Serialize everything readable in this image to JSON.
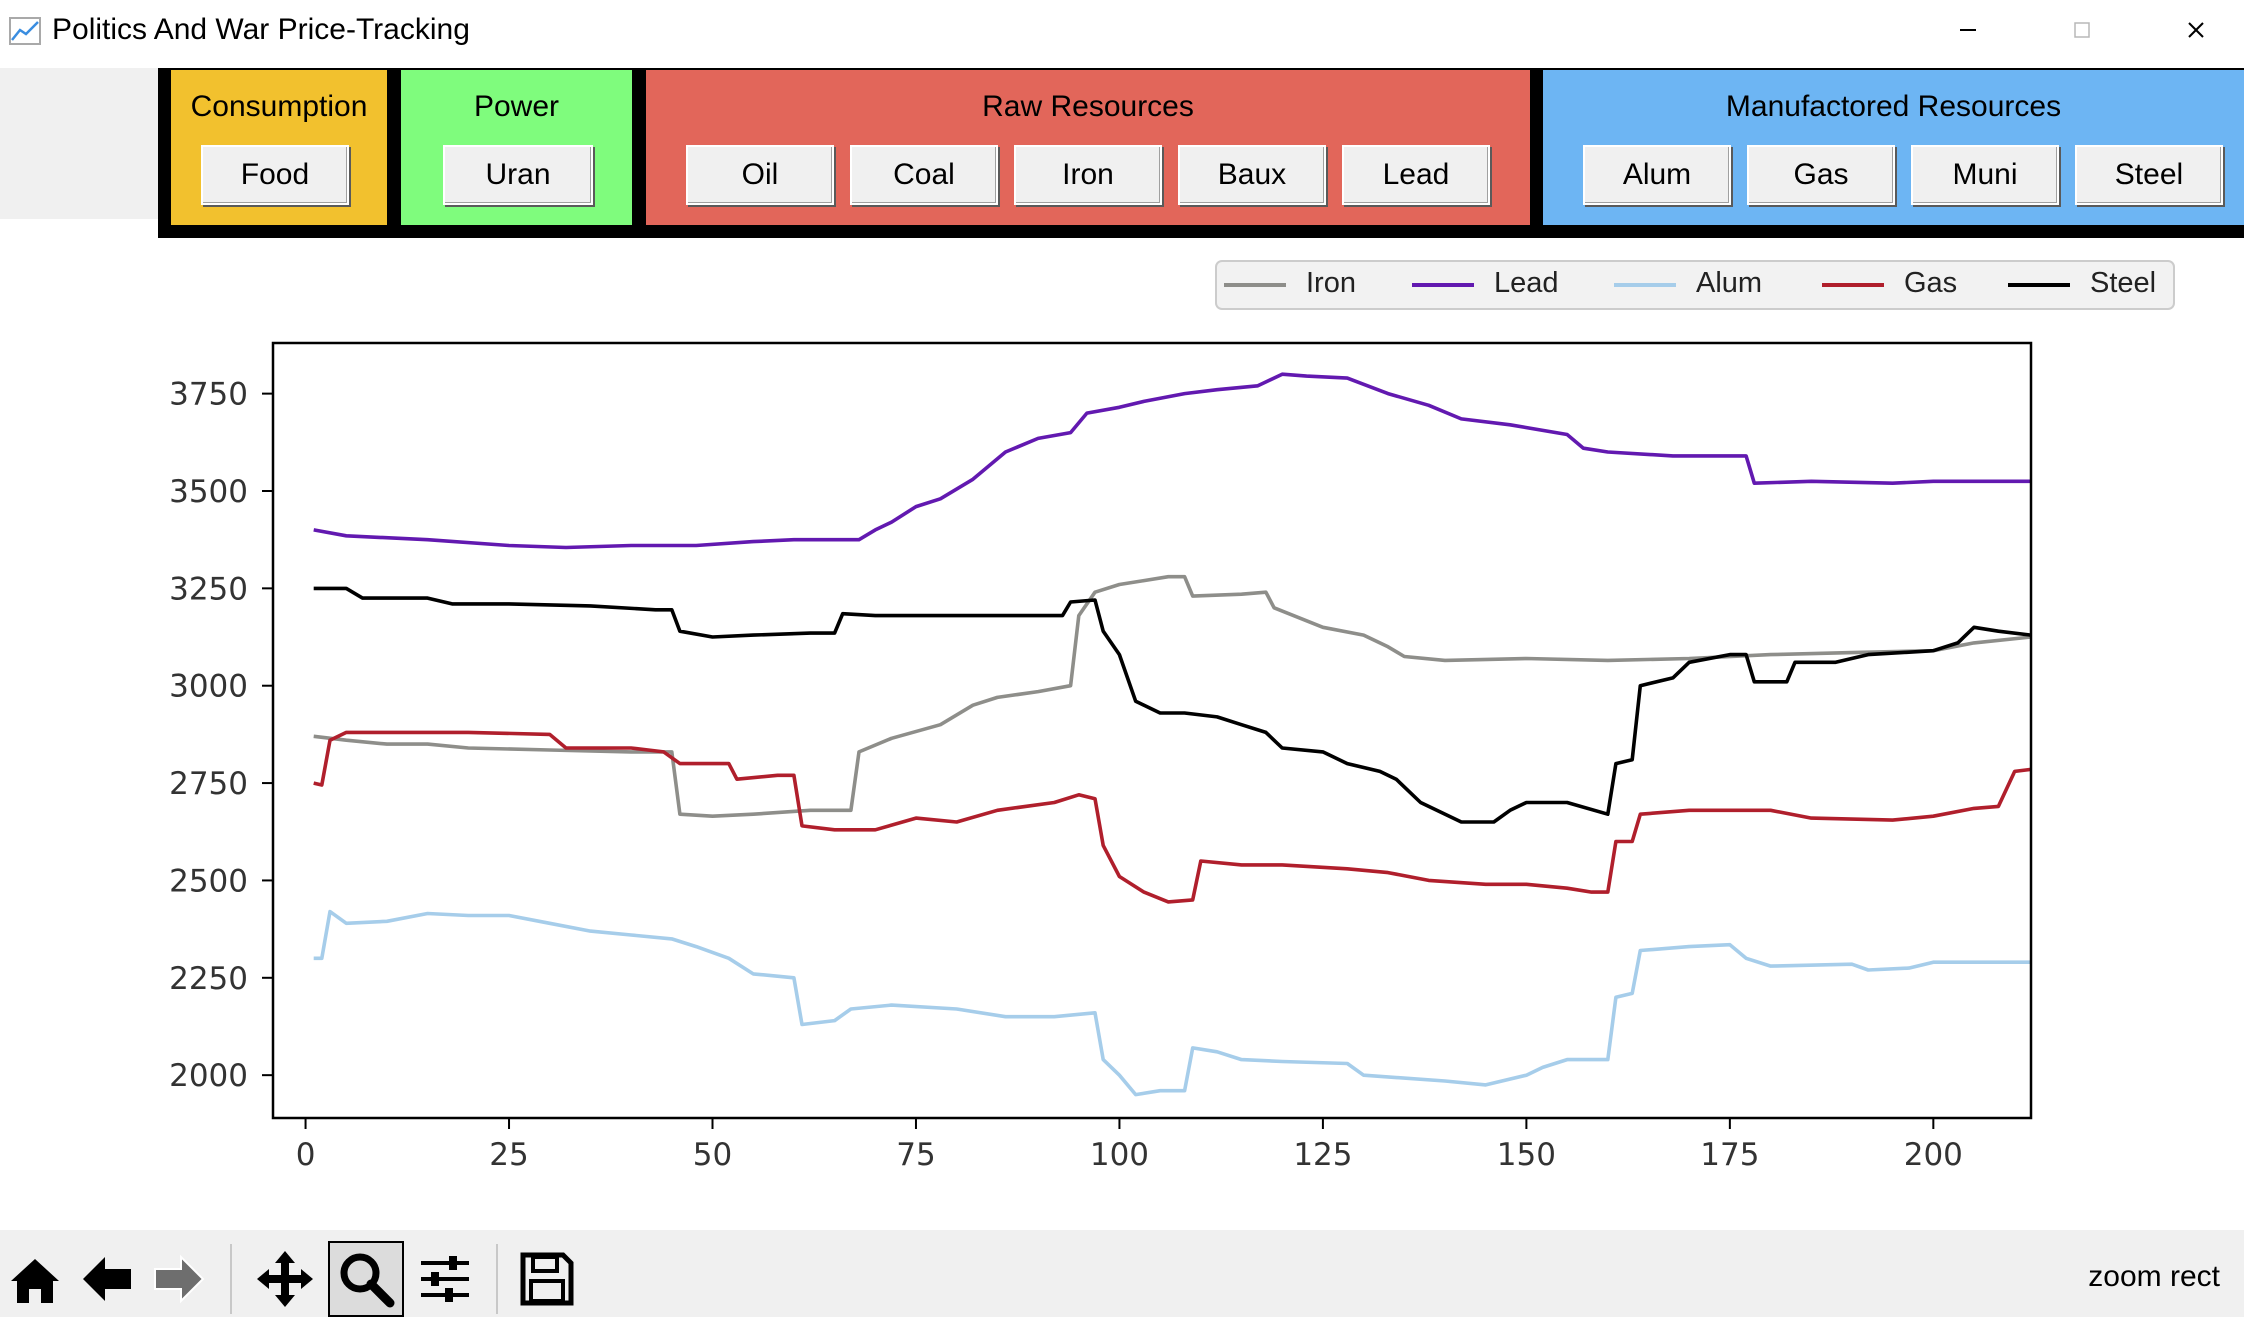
{
  "window": {
    "title": "Politics And War Price-Tracking",
    "controls": [
      "minimize",
      "maximize",
      "close"
    ]
  },
  "categories": [
    {
      "label": "Consumption",
      "color": "#f2c12e",
      "buttons": [
        "Food"
      ]
    },
    {
      "label": "Power",
      "color": "#7ffc7d",
      "buttons": [
        "Uran"
      ]
    },
    {
      "label": "Raw Resources",
      "color": "#e2665a",
      "buttons": [
        "Oil",
        "Coal",
        "Iron",
        "Baux",
        "Lead"
      ]
    },
    {
      "label": "Manufactored Resources",
      "color": "#6db5f3",
      "buttons": [
        "Alum",
        "Gas",
        "Muni",
        "Steel"
      ]
    }
  ],
  "toolbar": {
    "icons": [
      "home-icon",
      "back-arrow-icon",
      "forward-arrow-icon",
      "pan-icon",
      "zoom-icon",
      "configure-subplots-icon",
      "save-icon"
    ],
    "active": "zoom-icon",
    "status": "zoom rect"
  },
  "chart_data": {
    "type": "line",
    "xlim": [
      -4,
      212
    ],
    "ylim": [
      1890,
      3880
    ],
    "xticks": [
      0,
      25,
      50,
      75,
      100,
      125,
      150,
      175,
      200
    ],
    "yticks": [
      2000,
      2250,
      2500,
      2750,
      3000,
      3250,
      3500,
      3750
    ],
    "legend_position": "top-right",
    "grid": false,
    "series": [
      {
        "name": "Iron",
        "color": "#8e8e8a",
        "points": [
          [
            1,
            2870
          ],
          [
            5,
            2860
          ],
          [
            10,
            2850
          ],
          [
            15,
            2850
          ],
          [
            20,
            2840
          ],
          [
            30,
            2835
          ],
          [
            40,
            2830
          ],
          [
            45,
            2830
          ],
          [
            46,
            2670
          ],
          [
            50,
            2665
          ],
          [
            55,
            2670
          ],
          [
            62,
            2680
          ],
          [
            67,
            2680
          ],
          [
            68,
            2830
          ],
          [
            72,
            2865
          ],
          [
            78,
            2900
          ],
          [
            82,
            2950
          ],
          [
            85,
            2970
          ],
          [
            90,
            2985
          ],
          [
            94,
            3000
          ],
          [
            95,
            3180
          ],
          [
            97,
            3240
          ],
          [
            100,
            3260
          ],
          [
            103,
            3270
          ],
          [
            106,
            3280
          ],
          [
            108,
            3280
          ],
          [
            109,
            3230
          ],
          [
            115,
            3235
          ],
          [
            118,
            3240
          ],
          [
            119,
            3200
          ],
          [
            125,
            3150
          ],
          [
            130,
            3130
          ],
          [
            133,
            3100
          ],
          [
            135,
            3075
          ],
          [
            140,
            3065
          ],
          [
            150,
            3070
          ],
          [
            160,
            3065
          ],
          [
            170,
            3070
          ],
          [
            180,
            3080
          ],
          [
            190,
            3085
          ],
          [
            200,
            3090
          ],
          [
            205,
            3110
          ],
          [
            212,
            3125
          ]
        ]
      },
      {
        "name": "Lead",
        "color": "#6219b0",
        "points": [
          [
            1,
            3400
          ],
          [
            5,
            3385
          ],
          [
            15,
            3375
          ],
          [
            25,
            3360
          ],
          [
            32,
            3355
          ],
          [
            40,
            3360
          ],
          [
            48,
            3360
          ],
          [
            55,
            3370
          ],
          [
            60,
            3375
          ],
          [
            68,
            3375
          ],
          [
            70,
            3400
          ],
          [
            72,
            3420
          ],
          [
            75,
            3460
          ],
          [
            78,
            3480
          ],
          [
            82,
            3530
          ],
          [
            86,
            3600
          ],
          [
            90,
            3635
          ],
          [
            94,
            3650
          ],
          [
            96,
            3700
          ],
          [
            100,
            3715
          ],
          [
            103,
            3730
          ],
          [
            108,
            3750
          ],
          [
            112,
            3760
          ],
          [
            117,
            3770
          ],
          [
            120,
            3800
          ],
          [
            123,
            3795
          ],
          [
            128,
            3790
          ],
          [
            133,
            3750
          ],
          [
            138,
            3720
          ],
          [
            142,
            3685
          ],
          [
            148,
            3670
          ],
          [
            155,
            3645
          ],
          [
            157,
            3610
          ],
          [
            160,
            3600
          ],
          [
            168,
            3590
          ],
          [
            177,
            3590
          ],
          [
            178,
            3520
          ],
          [
            185,
            3525
          ],
          [
            195,
            3520
          ],
          [
            200,
            3525
          ],
          [
            212,
            3525
          ]
        ]
      },
      {
        "name": "Alum",
        "color": "#a6cdea",
        "points": [
          [
            1,
            2300
          ],
          [
            2,
            2300
          ],
          [
            3,
            2420
          ],
          [
            5,
            2390
          ],
          [
            10,
            2395
          ],
          [
            15,
            2415
          ],
          [
            20,
            2410
          ],
          [
            25,
            2410
          ],
          [
            30,
            2390
          ],
          [
            35,
            2370
          ],
          [
            40,
            2360
          ],
          [
            45,
            2350
          ],
          [
            48,
            2330
          ],
          [
            52,
            2300
          ],
          [
            55,
            2260
          ],
          [
            60,
            2250
          ],
          [
            61,
            2130
          ],
          [
            65,
            2140
          ],
          [
            67,
            2170
          ],
          [
            72,
            2180
          ],
          [
            80,
            2170
          ],
          [
            86,
            2150
          ],
          [
            92,
            2150
          ],
          [
            97,
            2160
          ],
          [
            98,
            2040
          ],
          [
            100,
            2000
          ],
          [
            102,
            1950
          ],
          [
            105,
            1960
          ],
          [
            108,
            1960
          ],
          [
            109,
            2070
          ],
          [
            112,
            2060
          ],
          [
            115,
            2040
          ],
          [
            120,
            2035
          ],
          [
            128,
            2030
          ],
          [
            130,
            2000
          ],
          [
            140,
            1985
          ],
          [
            145,
            1975
          ],
          [
            150,
            2000
          ],
          [
            152,
            2020
          ],
          [
            155,
            2040
          ],
          [
            160,
            2040
          ],
          [
            161,
            2200
          ],
          [
            163,
            2210
          ],
          [
            164,
            2320
          ],
          [
            170,
            2330
          ],
          [
            175,
            2335
          ],
          [
            177,
            2300
          ],
          [
            180,
            2280
          ],
          [
            190,
            2285
          ],
          [
            192,
            2270
          ],
          [
            197,
            2275
          ],
          [
            200,
            2290
          ],
          [
            212,
            2290
          ]
        ]
      },
      {
        "name": "Gas",
        "color": "#b01f2c",
        "points": [
          [
            1,
            2750
          ],
          [
            2,
            2745
          ],
          [
            3,
            2860
          ],
          [
            5,
            2880
          ],
          [
            10,
            2880
          ],
          [
            20,
            2880
          ],
          [
            30,
            2875
          ],
          [
            32,
            2840
          ],
          [
            40,
            2840
          ],
          [
            44,
            2830
          ],
          [
            46,
            2800
          ],
          [
            52,
            2800
          ],
          [
            53,
            2760
          ],
          [
            58,
            2770
          ],
          [
            60,
            2770
          ],
          [
            61,
            2640
          ],
          [
            65,
            2630
          ],
          [
            70,
            2630
          ],
          [
            75,
            2660
          ],
          [
            80,
            2650
          ],
          [
            85,
            2680
          ],
          [
            92,
            2700
          ],
          [
            95,
            2720
          ],
          [
            97,
            2710
          ],
          [
            98,
            2590
          ],
          [
            100,
            2510
          ],
          [
            103,
            2470
          ],
          [
            106,
            2445
          ],
          [
            109,
            2450
          ],
          [
            110,
            2550
          ],
          [
            115,
            2540
          ],
          [
            120,
            2540
          ],
          [
            128,
            2530
          ],
          [
            133,
            2520
          ],
          [
            138,
            2500
          ],
          [
            145,
            2490
          ],
          [
            150,
            2490
          ],
          [
            155,
            2480
          ],
          [
            158,
            2470
          ],
          [
            160,
            2470
          ],
          [
            161,
            2600
          ],
          [
            163,
            2600
          ],
          [
            164,
            2670
          ],
          [
            170,
            2680
          ],
          [
            180,
            2680
          ],
          [
            185,
            2660
          ],
          [
            195,
            2655
          ],
          [
            200,
            2665
          ],
          [
            205,
            2685
          ],
          [
            208,
            2690
          ],
          [
            210,
            2780
          ],
          [
            212,
            2785
          ]
        ]
      },
      {
        "name": "Steel",
        "color": "#000000",
        "points": [
          [
            1,
            3250
          ],
          [
            5,
            3250
          ],
          [
            7,
            3225
          ],
          [
            15,
            3225
          ],
          [
            18,
            3210
          ],
          [
            25,
            3210
          ],
          [
            35,
            3205
          ],
          [
            43,
            3195
          ],
          [
            45,
            3195
          ],
          [
            46,
            3140
          ],
          [
            50,
            3125
          ],
          [
            55,
            3130
          ],
          [
            62,
            3135
          ],
          [
            65,
            3135
          ],
          [
            66,
            3185
          ],
          [
            70,
            3180
          ],
          [
            80,
            3180
          ],
          [
            90,
            3180
          ],
          [
            93,
            3180
          ],
          [
            94,
            3215
          ],
          [
            97,
            3220
          ],
          [
            98,
            3140
          ],
          [
            100,
            3080
          ],
          [
            102,
            2960
          ],
          [
            105,
            2930
          ],
          [
            108,
            2930
          ],
          [
            112,
            2920
          ],
          [
            115,
            2900
          ],
          [
            118,
            2880
          ],
          [
            120,
            2840
          ],
          [
            125,
            2830
          ],
          [
            128,
            2800
          ],
          [
            132,
            2780
          ],
          [
            134,
            2760
          ],
          [
            137,
            2700
          ],
          [
            142,
            2650
          ],
          [
            146,
            2650
          ],
          [
            148,
            2680
          ],
          [
            150,
            2700
          ],
          [
            155,
            2700
          ],
          [
            160,
            2670
          ],
          [
            161,
            2800
          ],
          [
            163,
            2810
          ],
          [
            164,
            3000
          ],
          [
            168,
            3020
          ],
          [
            170,
            3060
          ],
          [
            175,
            3080
          ],
          [
            177,
            3080
          ],
          [
            178,
            3010
          ],
          [
            182,
            3010
          ],
          [
            183,
            3060
          ],
          [
            188,
            3060
          ],
          [
            192,
            3080
          ],
          [
            200,
            3090
          ],
          [
            203,
            3110
          ],
          [
            205,
            3150
          ],
          [
            208,
            3140
          ],
          [
            212,
            3130
          ]
        ]
      }
    ]
  }
}
